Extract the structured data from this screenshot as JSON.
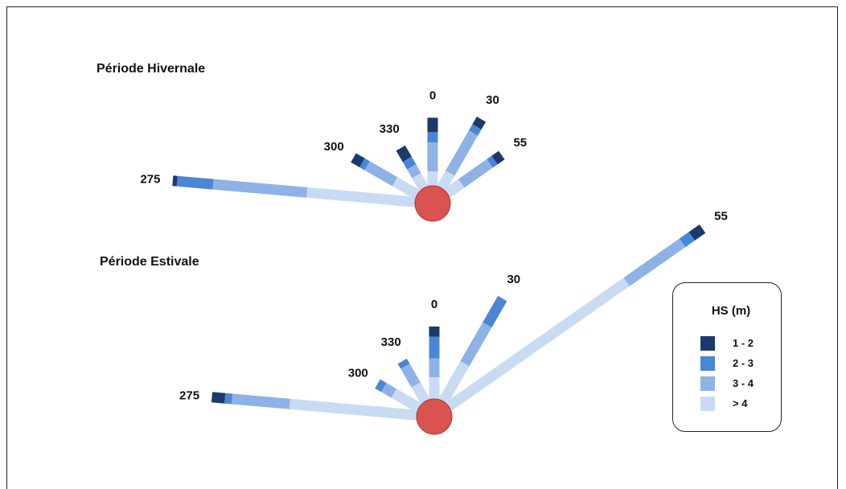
{
  "colors": {
    "class_1_2": "#1b3a6b",
    "class_2_3": "#4a86d6",
    "class_3_4": "#8fb2e6",
    "class_gt4": "#c9dbf2",
    "center_fill": "#d9534f",
    "center_stroke": "#b5342f"
  },
  "periods": [
    {
      "title": "Période Hivernale",
      "directions": [
        {
          "label": "275",
          "classes": {
            "gt4": 3.75,
            "3-4": 3.25,
            "2-3": 1.25,
            "1-2": 0.15
          }
        },
        {
          "label": "300",
          "classes": {
            "gt4": 0.9,
            "3-4": 1.1,
            "2-3": 0.2,
            "1-2": 0.35
          }
        },
        {
          "label": "330",
          "classes": {
            "gt4": 0.5,
            "3-4": 0.35,
            "2-3": 0.3,
            "1-2": 0.45
          }
        },
        {
          "label": "0",
          "classes": {
            "gt4": 0.5,
            "3-4": 1.0,
            "2-3": 0.35,
            "1-2": 0.5
          }
        },
        {
          "label": "30",
          "classes": {
            "gt4": 0.6,
            "3-4": 1.6,
            "2-3": 0.25,
            "1-2": 0.3
          }
        },
        {
          "label": "55",
          "classes": {
            "gt4": 0.6,
            "3-4": 1.2,
            "2-3": 0.2,
            "1-2": 0.3
          }
        }
      ]
    },
    {
      "title": "Période Estivale",
      "directions": [
        {
          "label": "275",
          "classes": {
            "gt4": 4.4,
            "3-4": 2.0,
            "2-3": 0.25,
            "1-2": 0.45
          }
        },
        {
          "label": "300",
          "classes": {
            "gt4": 1.0,
            "3-4": 0.4,
            "2-3": 0.25,
            "1-2": 0
          }
        },
        {
          "label": "330",
          "classes": {
            "gt4": 0.65,
            "3-4": 0.75,
            "2-3": 0.2,
            "1-2": 0
          }
        },
        {
          "label": "0",
          "classes": {
            "gt4": 0.75,
            "3-4": 0.65,
            "2-3": 0.75,
            "1-2": 0.35
          }
        },
        {
          "label": "30",
          "classes": {
            "gt4": 1.5,
            "3-4": 1.55,
            "2-3": 1.05,
            "1-2": 0
          }
        },
        {
          "label": "55",
          "classes": {
            "gt4": 7.5,
            "3-4": 2.35,
            "2-3": 0.4,
            "1-2": 0.45
          }
        }
      ]
    }
  ],
  "legend": {
    "title": "HS (m)",
    "items": [
      {
        "label": "1 - 2",
        "color_key": "class_1_2"
      },
      {
        "label": "2 - 3",
        "color_key": "class_2_3"
      },
      {
        "label": "3 - 4",
        "color_key": "class_3_4"
      },
      {
        "label": "> 4",
        "color_key": "class_gt4"
      }
    ]
  }
}
